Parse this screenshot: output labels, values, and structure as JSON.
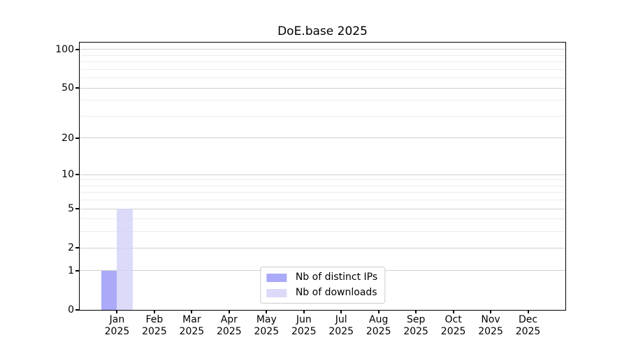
{
  "chart_data": {
    "type": "bar",
    "title": "DoE.base 2025",
    "categories": [
      "Jan",
      "Feb",
      "Mar",
      "Apr",
      "May",
      "Jun",
      "Jul",
      "Aug",
      "Sep",
      "Oct",
      "Nov",
      "Dec"
    ],
    "category_year": "2025",
    "series": [
      {
        "name": "Nb of distinct IPs",
        "color": "#aaaaf8",
        "values": [
          1,
          0,
          0,
          0,
          0,
          0,
          0,
          0,
          0,
          0,
          0,
          0
        ]
      },
      {
        "name": "Nb of downloads",
        "color": "#dbdbf9",
        "values": [
          5,
          0,
          0,
          0,
          0,
          0,
          0,
          0,
          0,
          0,
          0,
          0
        ]
      }
    ],
    "y_scale": "log1p",
    "ylim": [
      0,
      113
    ],
    "y_major_ticks": [
      0,
      1,
      2,
      5,
      10,
      20,
      50,
      100
    ],
    "y_minor_gridlines": [
      3,
      4,
      6,
      7,
      8,
      9,
      30,
      40,
      60,
      70,
      80,
      90
    ],
    "grid": true,
    "legend_position": "lower center"
  },
  "colors": {
    "major_grid": "#d0d0d0",
    "minor_grid": "#ececec",
    "axis": "#000000",
    "background": "#ffffff",
    "legend_border": "#cccccc"
  }
}
